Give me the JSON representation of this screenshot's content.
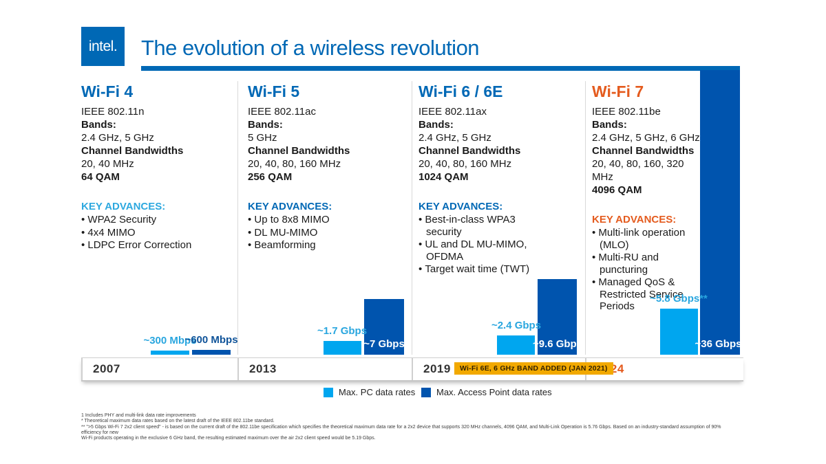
{
  "header": {
    "logo_text": "intel.",
    "title": "The evolution of a wireless revolution",
    "brand_blue": "#0068B5"
  },
  "columns": [
    {
      "title": "Wi-Fi 4",
      "ieee": "IEEE 802.11n",
      "bands_label": "Bands:",
      "bands": "2.4 GHz, 5 GHz",
      "bandwidth_label": "Channel Bandwidths",
      "bandwidths": "20, 40 MHz",
      "qam": "64 QAM",
      "advances_label": "KEY ADVANCES:",
      "advances_color": "#2DA8DF",
      "advances": [
        "WPA2 Security",
        "4x4 MIMO",
        "LDPC Error Correction"
      ],
      "year": "2007",
      "pc_label": "~300 Mbps",
      "ap_label": "~600 Mbps"
    },
    {
      "title": "Wi-Fi 5",
      "ieee": "IEEE 802.11ac",
      "bands_label": "Bands:",
      "bands": "5 GHz",
      "bandwidth_label": "Channel Bandwidths",
      "bandwidths": "20, 40, 80, 160 MHz",
      "qam": "256 QAM",
      "advances_label": "KEY ADVANCES:",
      "advances_color": "#0068B5",
      "advances": [
        "Up to 8x8 MIMO",
        "DL MU-MIMO",
        "Beamforming"
      ],
      "year": "2013",
      "pc_label": "~1.7 Gbps",
      "ap_label": "~7 Gbps"
    },
    {
      "title": "Wi-Fi 6 / 6E",
      "ieee": "IEEE 802.11ax",
      "bands_label": "Bands:",
      "bands": "2.4 GHz, 5 GHz",
      "bandwidth_label": "Channel Bandwidths",
      "bandwidths": "20, 40, 80, 160 MHz",
      "qam": "1024 QAM",
      "advances_label": "KEY ADVANCES:",
      "advances_color": "#0068B5",
      "advances": [
        "Best-in-class WPA3 security",
        "UL and DL MU-MIMO, OFDMA",
        "Target wait time (TWT)"
      ],
      "year": "2019",
      "pc_label": "~2.4 Gbps",
      "ap_label": "~9.6 Gbps"
    },
    {
      "title": "Wi-Fi 7",
      "title_color": "#E45B1E",
      "ieee": "IEEE 802.11be",
      "bands_label": "Bands:",
      "bands": "2.4 GHz, 5 GHz, 6 GHz",
      "bandwidth_label": "Channel Bandwidths",
      "bandwidths": "20, 40, 80, 160, 320 MHz",
      "qam": "4096 QAM",
      "advances_label": "KEY ADVANCES:",
      "advances_color": "#E45B1E",
      "advances": [
        "Multi-link operation (MLO)",
        "Multi-RU and puncturing",
        "Managed QoS & Restricted Service Periods"
      ],
      "year": "2024",
      "pc_label": "~5.8 Gbps**",
      "ap_label": "~36 Gbps¹"
    }
  ],
  "timeline": {
    "badge": "Wi-Fi 6E, 6 GHz BAND ADDED  (JAN 2021)",
    "badge_bg": "#F2A900"
  },
  "legend": [
    {
      "label": "Max. PC data rates",
      "color": "#00A6EF"
    },
    {
      "label": "Max. Access Point data rates",
      "color": "#0054AE"
    }
  ],
  "footnotes": [
    "1 Includes PHY and multi-link data rate improvements",
    "* Theoretical maximum data rates based on the latest draft of the IEEE 802.11be standard.",
    "** \">5 Gbps Wi-Fi 7 2x2 client speed\" - is based on the current draft of the 802.11be specification which specifies the theoretical maximum data rate for a 2x2 device that supports 320 MHz channels, 4096 QAM, and Multi-Link Operation is 5.76 Gbps.  Based on an industry-standard assumption of 90% efficiency for new",
    "Wi-Fi products operating in the exclusive 6 GHz band, the resulting estimated maximum over the air 2x2 client speed would be 5.19 Gbps."
  ],
  "chart_data": {
    "type": "bar",
    "title": "The evolution of a wireless revolution",
    "categories": [
      "Wi-Fi 4 (2007)",
      "Wi-Fi 5 (2013)",
      "Wi-Fi 6 / 6E (2019)",
      "Wi-Fi 7 (2024)"
    ],
    "series": [
      {
        "name": "Max. PC data rates",
        "values": [
          0.3,
          1.7,
          2.4,
          5.8
        ],
        "color": "#00A6EF"
      },
      {
        "name": "Max. Access Point data rates",
        "values": [
          0.6,
          7,
          9.6,
          36
        ],
        "color": "#0054AE"
      }
    ],
    "unit": "Gbps",
    "value_labels": [
      [
        "~300 Mbps",
        "~600 Mbps"
      ],
      [
        "~1.7 Gbps",
        "~7 Gbps"
      ],
      [
        "~2.4 Gbps",
        "~9.6 Gbps"
      ],
      [
        "~5.8 Gbps**",
        "~36 Gbps¹"
      ]
    ],
    "ylim": [
      0,
      36
    ],
    "grid": false,
    "legend_position": "bottom"
  }
}
